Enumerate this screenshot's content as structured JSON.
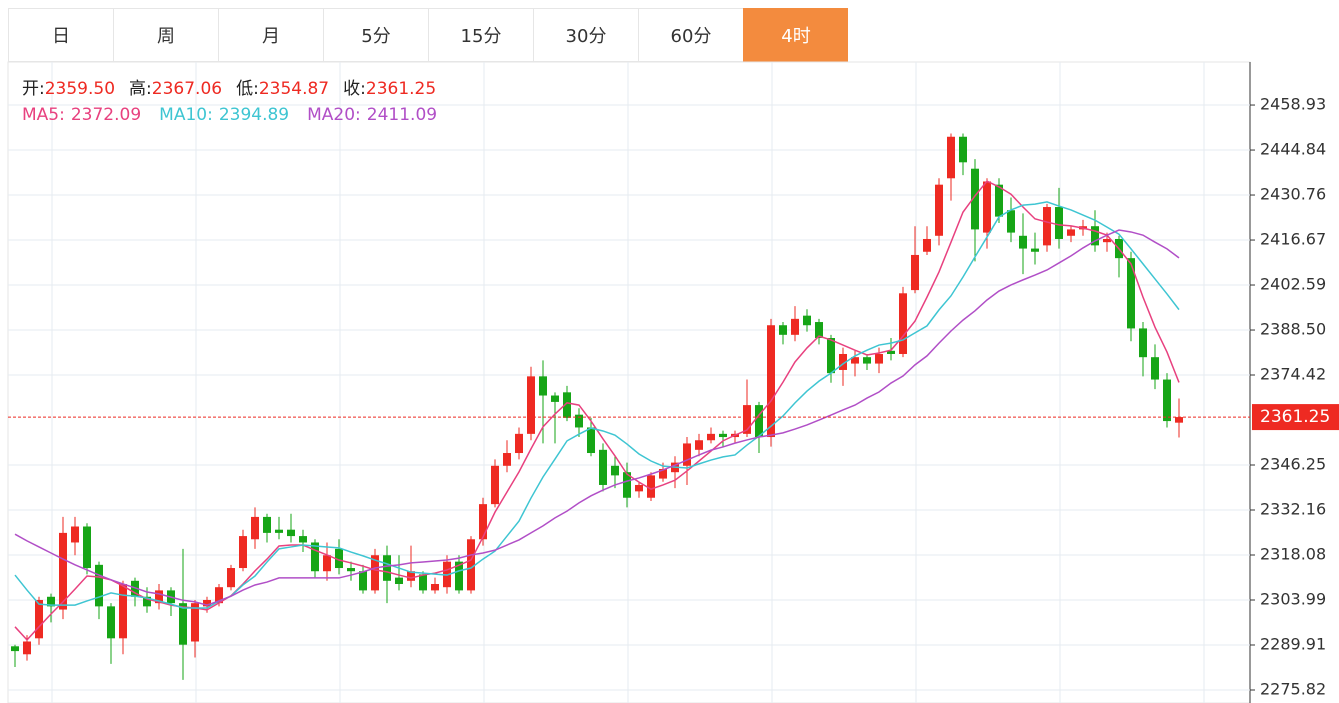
{
  "tabs": {
    "labels": [
      "日",
      "周",
      "月",
      "5分",
      "15分",
      "30分",
      "60分",
      "4时"
    ],
    "active": 7
  },
  "chart_data": {
    "type": "candlestick",
    "last_labels": {
      "names": [
        "开:",
        "高:",
        "低:",
        "收:"
      ],
      "value_labels": [
        "2359.50",
        "2367.06",
        "2354.87",
        "2361.25"
      ]
    },
    "up_color": "#ee2a22",
    "down_color": "#16a516",
    "grid": true,
    "ylim": [
      2271.75,
      2472.4
    ],
    "yticks": [
      2458.93,
      2444.84,
      2430.76,
      2416.67,
      2402.59,
      {
        "value": 2388.5,
        "label": "2388.50"
      },
      2374.42,
      2346.25,
      2332.16,
      2318.08,
      2303.99,
      2289.91,
      2275.82
    ],
    "ohlc": [
      [
        2289.5,
        2290,
        2283,
        2288
      ],
      [
        2287,
        2293,
        2285,
        2291
      ],
      [
        2292,
        2305,
        2290,
        2304
      ],
      [
        2305,
        2306,
        2297,
        2302
      ],
      [
        2301,
        2330,
        2298,
        2325
      ],
      [
        2322,
        2330,
        2318,
        2327
      ],
      [
        2327,
        2328,
        2312,
        2314
      ],
      [
        2315,
        2316,
        2298,
        2302
      ],
      [
        2302,
        2303,
        2284,
        2292
      ],
      [
        2292,
        2310,
        2287,
        2309
      ],
      [
        2310,
        2311,
        2302,
        2305
      ],
      [
        2305,
        2308,
        2300,
        2302
      ],
      [
        2303,
        2309,
        2301,
        2307
      ],
      [
        2307,
        2308,
        2299,
        2303
      ],
      [
        2303,
        2320,
        2279,
        2290
      ],
      [
        2291,
        2304,
        2286,
        2303
      ],
      [
        2302,
        2305,
        2300,
        2304
      ],
      [
        2303,
        2309,
        2302,
        2308
      ],
      [
        2308,
        2315,
        2307,
        2314
      ],
      [
        2314,
        2326,
        2313,
        2324
      ],
      [
        2323,
        2333,
        2320,
        2330
      ],
      [
        2330,
        2331,
        2322,
        2325
      ],
      [
        2326,
        2330,
        2323,
        2325
      ],
      [
        2326,
        2331,
        2322,
        2324
      ],
      [
        2324,
        2326,
        2319,
        2322
      ],
      [
        2322,
        2323,
        2311,
        2313
      ],
      [
        2313,
        2322,
        2310,
        2318
      ],
      [
        2320,
        2323,
        2312,
        2314
      ],
      [
        2314,
        2316,
        2310,
        2313
      ],
      [
        2313,
        2315,
        2306,
        2307
      ],
      [
        2307,
        2320,
        2306,
        2318
      ],
      [
        2318,
        2321,
        2303,
        2310
      ],
      [
        2311,
        2318,
        2307,
        2309
      ],
      [
        2310,
        2321,
        2308,
        2313
      ],
      [
        2312,
        2313,
        2306,
        2307
      ],
      [
        2307,
        2311,
        2306,
        2309
      ],
      [
        2308,
        2318,
        2306,
        2316
      ],
      [
        2316,
        2318,
        2306,
        2307
      ],
      [
        2307,
        2324,
        2306,
        2323
      ],
      [
        2323,
        2336,
        2321,
        2334
      ],
      [
        2334,
        2348,
        2333,
        2346
      ],
      [
        2346,
        2354,
        2344,
        2350
      ],
      [
        2350,
        2358,
        2348,
        2356
      ],
      [
        2356,
        2377,
        2354,
        2374
      ],
      [
        2374,
        2379,
        2353,
        2368
      ],
      [
        2368,
        2369,
        2353,
        2366
      ],
      [
        2369,
        2371,
        2360,
        2361
      ],
      [
        2362,
        2364,
        2355,
        2358
      ],
      [
        2358,
        2361,
        2349,
        2350
      ],
      [
        2351,
        2353,
        2338,
        2340
      ],
      [
        2346,
        2349,
        2339,
        2343
      ],
      [
        2344,
        2347,
        2333,
        2336
      ],
      [
        2338,
        2341,
        2336,
        2340
      ],
      [
        2336,
        2344,
        2335,
        2343
      ],
      [
        2342,
        2347,
        2341,
        2345
      ],
      [
        2344,
        2349,
        2339,
        2347
      ],
      [
        2346,
        2355,
        2340,
        2353
      ],
      [
        2351,
        2356,
        2349,
        2354
      ],
      [
        2354,
        2358,
        2353,
        2356
      ],
      [
        2356,
        2357,
        2352,
        2355
      ],
      [
        2355,
        2357,
        2353,
        2356
      ],
      [
        2356,
        2373,
        2355,
        2365
      ],
      [
        2365,
        2366,
        2350,
        2355
      ],
      [
        2355,
        2392,
        2352,
        2390
      ],
      [
        2390,
        2391,
        2384,
        2387
      ],
      [
        2387,
        2396,
        2385,
        2392
      ],
      [
        2393,
        2395,
        2388,
        2390
      ],
      [
        2391,
        2392,
        2384,
        2386
      ],
      [
        2386,
        2387,
        2372,
        2375
      ],
      [
        2376,
        2383,
        2371,
        2381
      ],
      [
        2378,
        2382,
        2374,
        2380
      ],
      [
        2380,
        2381,
        2376,
        2378
      ],
      [
        2378,
        2383,
        2375,
        2381
      ],
      [
        2382,
        2386,
        2379,
        2381
      ],
      [
        2381,
        2402,
        2380,
        2400
      ],
      [
        2401,
        2421,
        2400,
        2412
      ],
      [
        2413,
        2421,
        2412,
        2417
      ],
      [
        2418,
        2436,
        2415,
        2434
      ],
      [
        2436,
        2450,
        2429,
        2449
      ],
      [
        2449,
        2450,
        2437,
        2441
      ],
      [
        2439,
        2442,
        2410,
        2420
      ],
      [
        2419,
        2436,
        2414,
        2435
      ],
      [
        2434,
        2436,
        2422,
        2424
      ],
      [
        2426,
        2430,
        2416,
        2419
      ],
      [
        2418,
        2425,
        2406,
        2414
      ],
      [
        2414,
        2419,
        2409,
        2413
      ],
      [
        2415,
        2428,
        2413,
        2427
      ],
      [
        2427,
        2433,
        2414,
        2417
      ],
      [
        2418,
        2421,
        2416,
        2420
      ],
      [
        2420,
        2423,
        2418,
        2421
      ],
      [
        2421,
        2426,
        2413,
        2415
      ],
      [
        2416,
        2419,
        2413,
        2417
      ],
      [
        2417,
        2418,
        2405,
        2411
      ],
      [
        2411,
        2413,
        2385,
        2389
      ],
      [
        2389,
        2391,
        2374,
        2380
      ],
      [
        2380,
        2384,
        2370,
        2373
      ],
      [
        2373,
        2375,
        2358,
        2360
      ],
      [
        2359.5,
        2367.06,
        2354.87,
        2361.25
      ]
    ],
    "series": [
      {
        "name": "MA5:",
        "color": "#e8417f",
        "values": [
          2295.6,
          2291.5,
          2295.6,
          2299.6,
          2303.4,
          2307.4,
          2311.5,
          2311.2,
          2310.3,
          2308.4,
          2306.2,
          2304.3,
          2303.4,
          2302.4,
          2301.8,
          2301.5,
          2300.9,
          2303.1,
          2305.3,
          2309.0,
          2313.1,
          2316.8,
          2320.9,
          2321.2,
          2321.2,
          2319.6,
          2318.1,
          2316.5,
          2315.6,
          2314.6,
          2313.4,
          2312.8,
          2311.8,
          2310.9,
          2311.8,
          2312.4,
          2313.4,
          2314.9,
          2316.5,
          2323.7,
          2331.5,
          2337.8,
          2344.1,
          2351.3,
          2358.2,
          2362.2,
          2365.7,
          2365.0,
          2360.0,
          2354.4,
          2349.1,
          2343.4,
          2340.9,
          2338.7,
          2340.0,
          2341.5,
          2344.4,
          2347.5,
          2350.6,
          2353.8,
          2355.6,
          2357.2,
          2361.9,
          2366.3,
          2372.2,
          2378.5,
          2382.9,
          2386.6,
          2385.4,
          2383.8,
          2382.2,
          2380.7,
          2381.3,
          2382.2,
          2386.6,
          2391.3,
          2398.8,
          2406.7,
          2416.0,
          2425.4,
          2430.5,
          2435.1,
          2433.3,
          2431.0,
          2427.0,
          2423.3,
          2422.3,
          2421.4,
          2421.1,
          2420.4,
          2419.5,
          2418.2,
          2413.9,
          2409.2,
          2398.8,
          2389.4,
          2381.6,
          2372.09
        ]
      },
      {
        "name": "MA10:",
        "color": "#3ec5d2",
        "values": [
          2311.8,
          2307.1,
          2302.7,
          2302.4,
          2302.4,
          2302.4,
          2303.7,
          2304.9,
          2306.2,
          2305.5,
          2305.2,
          2304.6,
          2303.7,
          2302.7,
          2301.5,
          2301.5,
          2301.5,
          2303.7,
          2305.2,
          2308.7,
          2311.5,
          2315.9,
          2320.0,
          2320.6,
          2321.2,
          2320.9,
          2320.6,
          2320.3,
          2319.0,
          2317.8,
          2316.5,
          2315.3,
          2314.0,
          2312.7,
          2312.4,
          2312.1,
          2311.8,
          2313.1,
          2314.0,
          2316.8,
          2319.3,
          2324.0,
          2328.7,
          2335.9,
          2342.5,
          2348.1,
          2353.8,
          2355.9,
          2357.8,
          2356.9,
          2355.6,
          2352.8,
          2349.7,
          2347.5,
          2345.9,
          2345.6,
          2345.3,
          2346.6,
          2347.8,
          2348.8,
          2349.4,
          2352.5,
          2355.3,
          2358.4,
          2361.6,
          2365.7,
          2369.4,
          2372.5,
          2375.0,
          2377.9,
          2380.4,
          2382.2,
          2383.8,
          2384.4,
          2385.4,
          2387.6,
          2389.8,
          2394.8,
          2399.2,
          2405.1,
          2411.4,
          2417.6,
          2423.9,
          2426.1,
          2427.6,
          2427.9,
          2428.6,
          2427.3,
          2426.1,
          2424.5,
          2422.9,
          2420.7,
          2418.5,
          2413.9,
          2409.2,
          2404.5,
          2399.8,
          2394.89
        ]
      },
      {
        "name": "MA20:",
        "color": "#b14fc7",
        "values": [
          2324.6,
          2322.5,
          2320.6,
          2318.7,
          2316.8,
          2315.0,
          2313.4,
          2311.8,
          2310.3,
          2309.0,
          2307.8,
          2306.5,
          2305.9,
          2304.9,
          2303.9,
          2303.4,
          2302.4,
          2303.7,
          2305.2,
          2307.1,
          2308.7,
          2309.6,
          2310.9,
          2310.9,
          2310.9,
          2310.9,
          2310.9,
          2310.9,
          2311.8,
          2312.8,
          2314.0,
          2314.6,
          2315.0,
          2315.6,
          2315.9,
          2316.2,
          2316.5,
          2317.1,
          2318.1,
          2318.7,
          2319.6,
          2321.2,
          2322.8,
          2325.0,
          2327.2,
          2329.7,
          2331.8,
          2334.4,
          2336.6,
          2338.4,
          2340.0,
          2341.2,
          2342.2,
          2343.4,
          2344.7,
          2346.2,
          2347.8,
          2349.4,
          2350.9,
          2351.9,
          2353.1,
          2354.1,
          2355.0,
          2355.6,
          2356.3,
          2357.5,
          2358.8,
          2360.3,
          2361.9,
          2363.5,
          2365.0,
          2367.2,
          2369.1,
          2371.9,
          2374.1,
          2377.6,
          2380.4,
          2384.4,
          2388.2,
          2391.6,
          2394.5,
          2397.9,
          2400.7,
          2402.6,
          2404.2,
          2405.7,
          2407.3,
          2409.5,
          2411.7,
          2414.2,
          2416.4,
          2418.2,
          2419.8,
          2419.2,
          2418.2,
          2416.0,
          2413.9,
          2411.09
        ]
      }
    ]
  }
}
